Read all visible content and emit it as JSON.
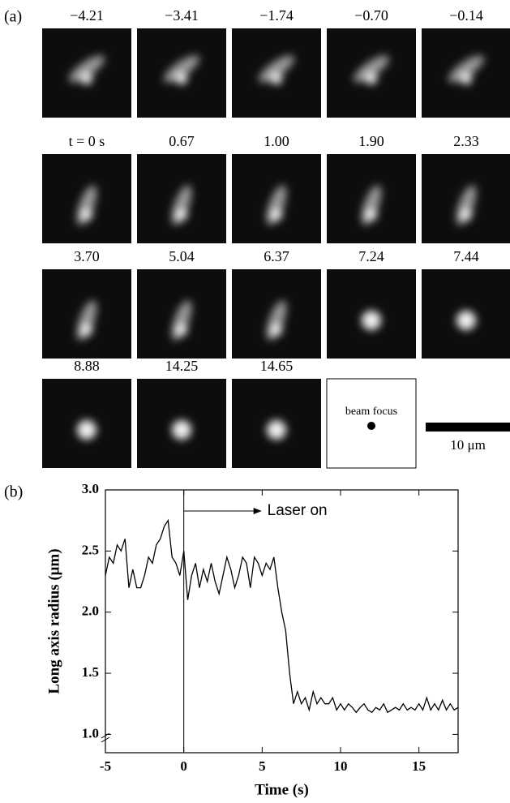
{
  "panel_a": {
    "label": "(a)",
    "frame_labels": [
      "−4.21",
      "−3.41",
      "−1.74",
      "−0.70",
      "−0.14",
      "t = 0 s",
      "0.67",
      "1.00",
      "1.90",
      "2.33",
      "3.70",
      "5.04",
      "6.37",
      "7.24",
      "7.44",
      "8.88",
      "14.25",
      "14.65"
    ],
    "beam_focus": "beam focus",
    "scale_bar": "10 μm"
  },
  "chart_data": {
    "type": "line",
    "label": "(b)",
    "xlabel": "Time (s)",
    "ylabel": "Long axis radius (μm)",
    "color": "#000000",
    "x": [
      -5,
      -4.75,
      -4.5,
      -4.25,
      -4,
      -3.75,
      -3.5,
      -3.25,
      -3,
      -2.75,
      -2.5,
      -2.25,
      -2,
      -1.75,
      -1.5,
      -1.25,
      -1,
      -0.75,
      -0.5,
      -0.25,
      0,
      0.25,
      0.5,
      0.75,
      1,
      1.25,
      1.5,
      1.75,
      2,
      2.25,
      2.5,
      2.75,
      3,
      3.25,
      3.5,
      3.75,
      4,
      4.25,
      4.5,
      4.75,
      5,
      5.25,
      5.5,
      5.75,
      6,
      6.25,
      6.5,
      6.75,
      7,
      7.25,
      7.5,
      7.75,
      8,
      8.25,
      8.5,
      8.75,
      9,
      9.25,
      9.5,
      9.75,
      10,
      10.25,
      10.5,
      10.75,
      11,
      11.25,
      11.5,
      11.75,
      12,
      12.25,
      12.5,
      12.75,
      13,
      13.25,
      13.5,
      13.75,
      14,
      14.25,
      14.5,
      14.75,
      15,
      15.25,
      15.5,
      15.75,
      16,
      16.25,
      16.5,
      16.75,
      17,
      17.25,
      17.5
    ],
    "values": [
      2.3,
      2.45,
      2.4,
      2.55,
      2.5,
      2.6,
      2.2,
      2.35,
      2.2,
      2.2,
      2.3,
      2.45,
      2.4,
      2.55,
      2.6,
      2.7,
      2.75,
      2.45,
      2.4,
      2.3,
      2.5,
      2.1,
      2.3,
      2.4,
      2.2,
      2.35,
      2.25,
      2.4,
      2.25,
      2.15,
      2.3,
      2.45,
      2.35,
      2.2,
      2.3,
      2.45,
      2.4,
      2.2,
      2.45,
      2.4,
      2.3,
      2.4,
      2.35,
      2.45,
      2.2,
      2.0,
      1.85,
      1.5,
      1.25,
      1.35,
      1.25,
      1.3,
      1.2,
      1.35,
      1.25,
      1.3,
      1.25,
      1.25,
      1.3,
      1.2,
      1.25,
      1.2,
      1.25,
      1.22,
      1.18,
      1.22,
      1.25,
      1.2,
      1.18,
      1.22,
      1.2,
      1.25,
      1.18,
      1.2,
      1.22,
      1.2,
      1.25,
      1.2,
      1.22,
      1.2,
      1.25,
      1.2,
      1.3,
      1.2,
      1.25,
      1.2,
      1.28,
      1.2,
      1.25,
      1.2,
      1.22
    ],
    "xlim": [
      -5,
      17.5
    ],
    "xticks": [
      -5,
      0,
      5,
      10,
      15
    ],
    "ylim": [
      0.85,
      3.0
    ],
    "yticks": [
      {
        "value": 1,
        "label": "1.0"
      },
      1.5,
      {
        "value": 2,
        "label": "2.0"
      },
      2.5,
      {
        "value": 3,
        "label": "3.0"
      }
    ],
    "annotation": {
      "text": "Laser on",
      "x": 0
    }
  }
}
